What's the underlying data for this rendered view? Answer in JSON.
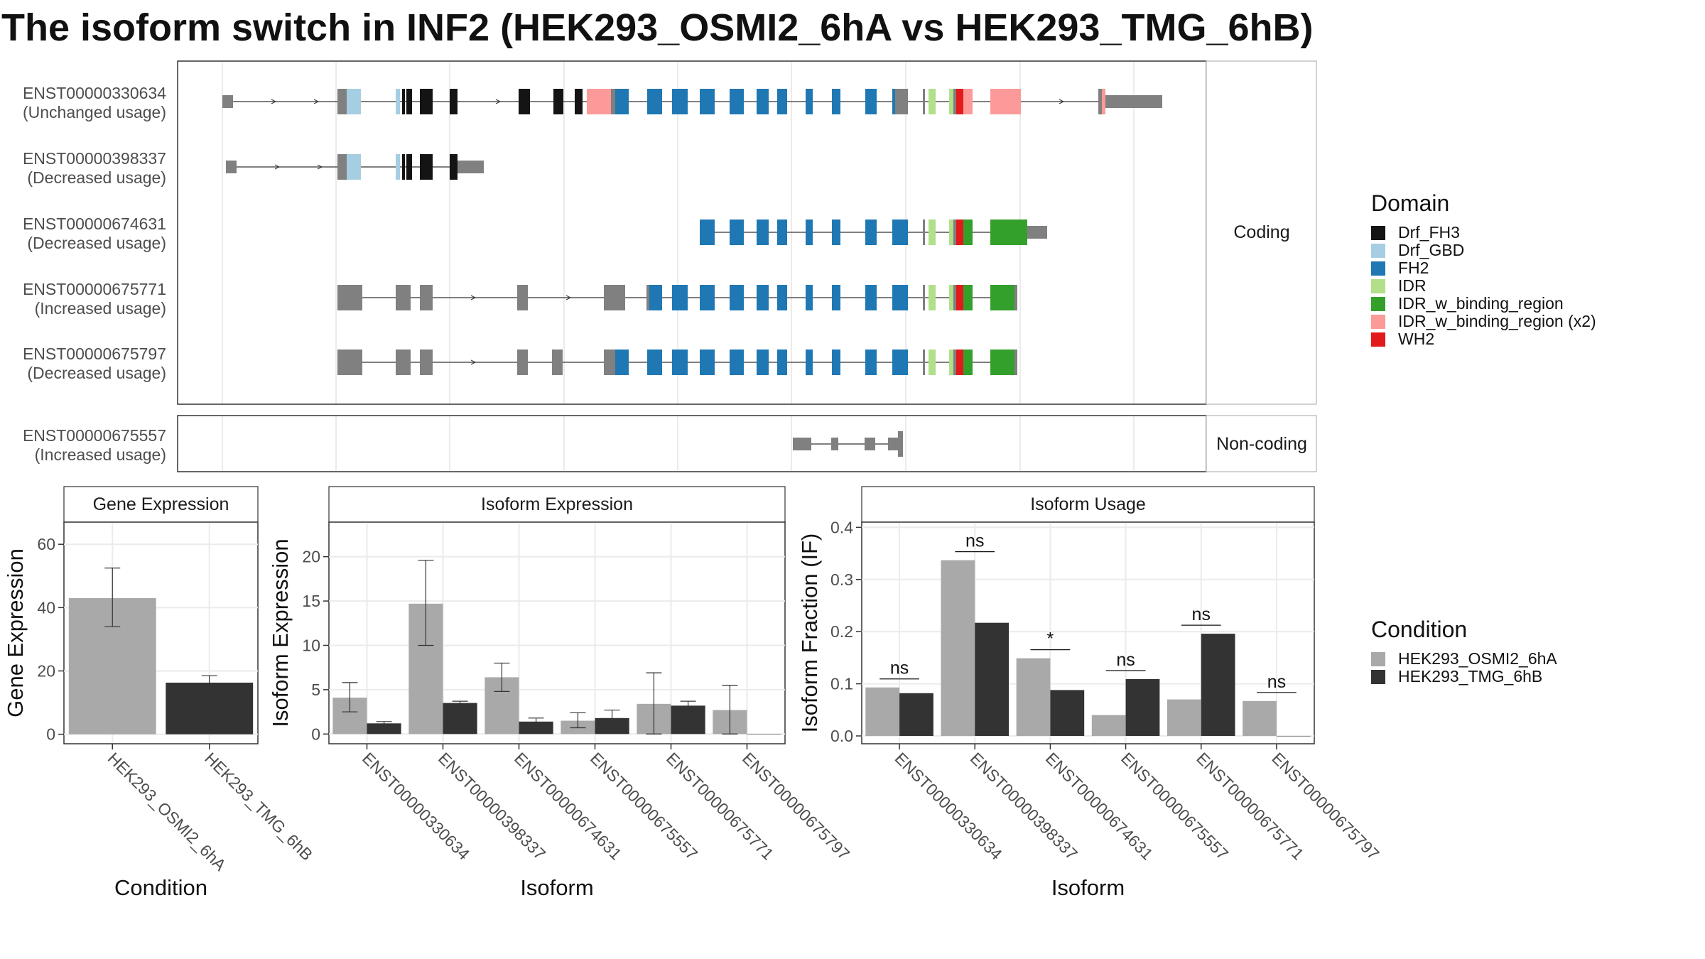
{
  "title": "The isoform switch in INF2 (HEK293_OSMI2_6hA vs HEK293_TMG_6hB)",
  "colors": {
    "Drf_FH3": "#141414",
    "Drf_GBD": "#a6cee3",
    "FH2": "#1f78b4",
    "IDR": "#b2df8a",
    "IDR_w_binding_region": "#33a02c",
    "IDR_w_binding_region (x2)": "#fb9a99",
    "WH2": "#e31a1c",
    "none": "#808080",
    "cond1": "#a9a9a9",
    "cond2": "#333333"
  },
  "transcripts": {
    "facet_labels": [
      "Coding",
      "Non-coding"
    ],
    "rows": [
      {
        "id": "ENST00000330634",
        "usage": "(Unchanged usage)",
        "group": "Coding"
      },
      {
        "id": "ENST00000398337",
        "usage": "(Decreased usage)",
        "group": "Coding"
      },
      {
        "id": "ENST00000674631",
        "usage": "(Decreased usage)",
        "group": "Coding"
      },
      {
        "id": "ENST00000675771",
        "usage": "(Increased usage)",
        "group": "Coding"
      },
      {
        "id": "ENST00000675797",
        "usage": "(Decreased usage)",
        "group": "Coding"
      },
      {
        "id": "ENST00000675557",
        "usage": "(Increased usage)",
        "group": "Non-coding"
      }
    ]
  },
  "legend_domain": {
    "title": "Domain",
    "items": [
      "Drf_FH3",
      "Drf_GBD",
      "FH2",
      "IDR",
      "IDR_w_binding_region",
      "IDR_w_binding_region (x2)",
      "WH2"
    ]
  },
  "legend_condition": {
    "title": "Condition",
    "items": [
      "HEK293_OSMI2_6hA",
      "HEK293_TMG_6hB"
    ]
  },
  "chart_data": [
    {
      "type": "bar",
      "title": "Gene Expression",
      "xlabel": "Condition",
      "ylabel": "Gene Expression",
      "categories": [
        "HEK293_OSMI2_6hA",
        "HEK293_TMG_6hB"
      ],
      "values": [
        43.0,
        16.3
      ],
      "error_low": [
        34.0,
        14.2
      ],
      "error_high": [
        52.5,
        18.5
      ],
      "ylim": [
        -3,
        67
      ],
      "yticks": [
        0,
        20,
        40,
        60
      ]
    },
    {
      "type": "bar",
      "title": "Isoform Expression",
      "xlabel": "Isoform",
      "ylabel": "Isoform Expression",
      "categories": [
        "ENST00000330634",
        "ENST00000398337",
        "ENST00000674631",
        "ENST00000675557",
        "ENST00000675771",
        "ENST00000675797"
      ],
      "series": [
        {
          "name": "HEK293_OSMI2_6hA",
          "values": [
            4.1,
            14.7,
            6.4,
            1.5,
            3.4,
            2.7
          ],
          "error_low": [
            2.5,
            10.0,
            4.8,
            0.7,
            0.0,
            0.0
          ],
          "error_high": [
            5.8,
            19.6,
            8.0,
            2.4,
            6.9,
            5.5
          ]
        },
        {
          "name": "HEK293_TMG_6hB",
          "values": [
            1.2,
            3.5,
            1.4,
            1.8,
            3.2,
            0.0
          ],
          "error_low": [
            1.0,
            3.3,
            1.0,
            1.0,
            2.6,
            0.0
          ],
          "error_high": [
            1.4,
            3.7,
            1.8,
            2.7,
            3.7,
            0.0
          ]
        }
      ],
      "ylim": [
        -1.1,
        23.9
      ],
      "yticks": [
        0,
        5,
        10,
        15,
        20
      ]
    },
    {
      "type": "bar",
      "title": "Isoform Usage",
      "xlabel": "Isoform",
      "ylabel": "Isoform Fraction (IF)",
      "categories": [
        "ENST00000330634",
        "ENST00000398337",
        "ENST00000674631",
        "ENST00000675557",
        "ENST00000675771",
        "ENST00000675797"
      ],
      "series": [
        {
          "name": "HEK293_OSMI2_6hA",
          "values": [
            0.093,
            0.337,
            0.149,
            0.04,
            0.07,
            0.067
          ]
        },
        {
          "name": "HEK293_TMG_6hB",
          "values": [
            0.082,
            0.217,
            0.088,
            0.109,
            0.196,
            0.0
          ]
        }
      ],
      "significance": [
        "ns",
        "ns",
        "*",
        "ns",
        "ns",
        "ns"
      ],
      "ylim": [
        -0.015,
        0.41
      ],
      "yticks": [
        "0.0",
        "0.1",
        "0.2",
        "0.3",
        "0.4"
      ]
    }
  ]
}
